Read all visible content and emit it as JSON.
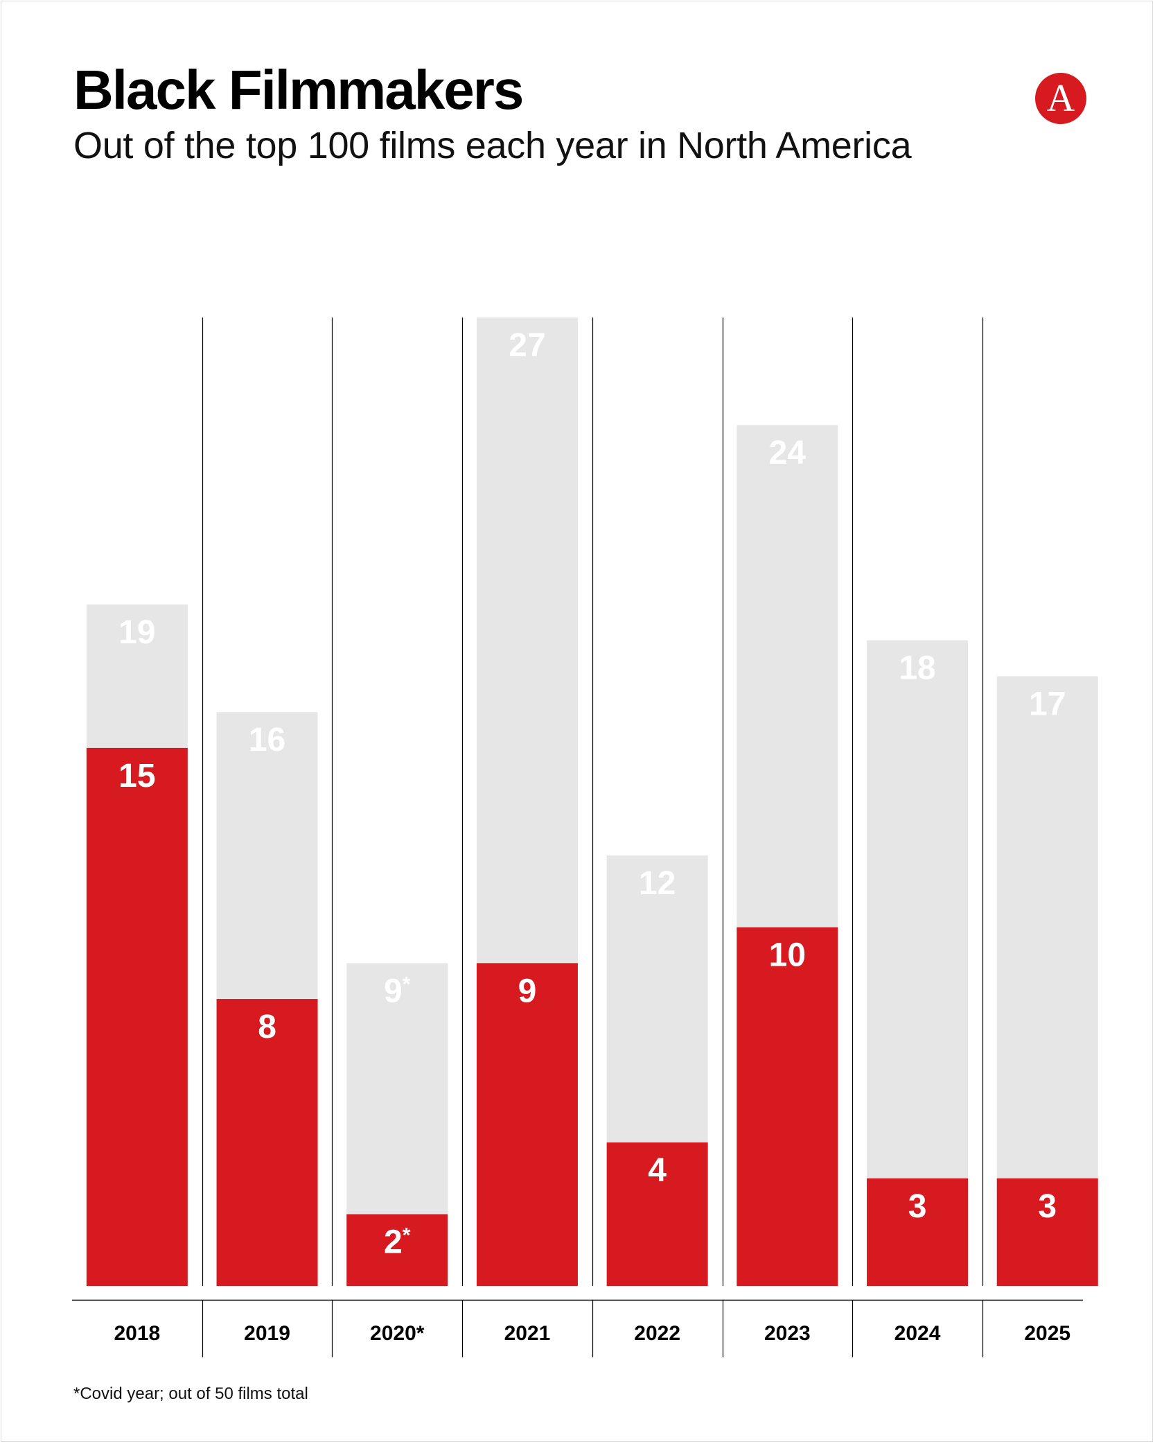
{
  "title": "Black Filmmakers",
  "subtitle": "Out of the top 100 films each year in North America",
  "logo_letter": "A",
  "footnote": "*Covid year; out of 50 films total",
  "colors": {
    "red": "#d71920",
    "gray": "#e6e6e6",
    "label": "#ffffff",
    "axis": "#000000"
  },
  "chart_data": {
    "type": "bar",
    "stacking": "overlay",
    "categories": [
      "2018",
      "2019",
      "2020*",
      "2021",
      "2022",
      "2023",
      "2024",
      "2025"
    ],
    "series": [
      {
        "values": [
          19,
          16,
          9,
          27,
          12,
          24,
          18,
          17
        ],
        "value_labels": [
          "19",
          "16",
          "9*",
          "27",
          "12",
          "24",
          "18",
          "17"
        ]
      },
      {
        "values": [
          15,
          8,
          2,
          9,
          4,
          10,
          3,
          3
        ],
        "value_labels": [
          "15",
          "8",
          "2*",
          "9",
          "4",
          "10",
          "3",
          "3"
        ]
      }
    ],
    "ylim": [
      0,
      27
    ],
    "grid": false,
    "legend": "none"
  }
}
